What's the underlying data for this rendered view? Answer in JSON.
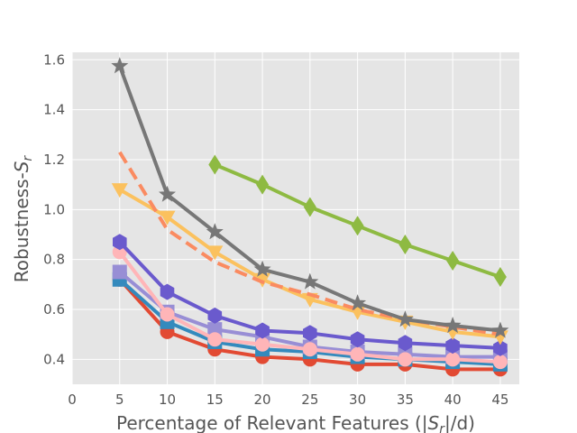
{
  "chart_data": {
    "type": "line",
    "xlabel": "Percentage of Relevant Features (|S_r|/d)",
    "xlabel_parts": [
      "Percentage of Relevant Features (|",
      "S",
      "r",
      "|/d)"
    ],
    "ylabel": "Robustness-S_r",
    "ylabel_parts": [
      "Robustness-",
      "S",
      "r"
    ],
    "xlim": [
      0,
      47
    ],
    "ylim": [
      0.3,
      1.63
    ],
    "xticks": [
      0,
      5,
      10,
      15,
      20,
      25,
      30,
      35,
      40,
      45
    ],
    "yticks": [
      0.4,
      0.6,
      0.8,
      1.0,
      1.2,
      1.4,
      1.6
    ],
    "ytick_labels": [
      "0.4",
      "0.6",
      "0.8",
      "1.0",
      "1.2",
      "1.4",
      "1.6"
    ],
    "grid": true,
    "background": "#e5e5e5",
    "series": [
      {
        "color": "#e24a33",
        "marker": "circle",
        "dash": false,
        "x": [
          5,
          10,
          15,
          20,
          25,
          30,
          35,
          40,
          45
        ],
        "values": [
          0.72,
          0.51,
          0.44,
          0.41,
          0.4,
          0.38,
          0.38,
          0.36,
          0.36
        ]
      },
      {
        "color": "#348abd",
        "marker": "square",
        "dash": false,
        "x": [
          5,
          10,
          15,
          20,
          25,
          30,
          35,
          40,
          45
        ],
        "values": [
          0.72,
          0.55,
          0.47,
          0.44,
          0.43,
          0.41,
          0.4,
          0.39,
          0.38
        ]
      },
      {
        "color": "#988ed5",
        "marker": "square",
        "dash": false,
        "x": [
          5,
          10,
          15,
          20,
          25,
          30,
          35,
          40,
          45
        ],
        "values": [
          0.75,
          0.59,
          0.52,
          0.49,
          0.45,
          0.43,
          0.42,
          0.41,
          0.41
        ]
      },
      {
        "color": "#ffb5b8",
        "marker": "circle",
        "dash": false,
        "x": [
          5,
          10,
          15,
          20,
          25,
          30,
          35,
          40,
          45
        ],
        "values": [
          0.83,
          0.58,
          0.48,
          0.46,
          0.44,
          0.42,
          0.4,
          0.4,
          0.39
        ]
      },
      {
        "color": "#6a5acd",
        "marker": "hexagon",
        "dash": false,
        "x": [
          5,
          10,
          15,
          20,
          25,
          30,
          35,
          40,
          45
        ],
        "values": [
          0.87,
          0.67,
          0.575,
          0.515,
          0.505,
          0.48,
          0.465,
          0.455,
          0.445
        ]
      },
      {
        "color": "#fbc15e",
        "marker": "triangle-down",
        "dash": false,
        "x": [
          5,
          10,
          15,
          20,
          25,
          30,
          35,
          40,
          45
        ],
        "values": [
          1.08,
          0.97,
          0.83,
          0.72,
          0.64,
          0.59,
          0.55,
          0.51,
          0.49
        ]
      },
      {
        "color": "#fa8b61",
        "marker": "none",
        "dash": true,
        "x": [
          5,
          10,
          15,
          20,
          25,
          30,
          35,
          40,
          45
        ],
        "values": [
          1.23,
          0.92,
          0.79,
          0.71,
          0.66,
          0.6,
          0.56,
          0.53,
          0.5
        ]
      },
      {
        "color": "#777777",
        "marker": "star",
        "dash": false,
        "x": [
          5,
          10,
          15,
          20,
          25,
          30,
          35,
          40,
          45
        ],
        "values": [
          1.575,
          1.06,
          0.91,
          0.76,
          0.71,
          0.625,
          0.56,
          0.535,
          0.515
        ]
      },
      {
        "color": "#8eba42",
        "marker": "diamond",
        "dash": false,
        "x": [
          15,
          20,
          25,
          30,
          35,
          40,
          45
        ],
        "values": [
          1.18,
          1.1,
          1.01,
          0.935,
          0.86,
          0.795,
          0.73
        ]
      }
    ]
  }
}
